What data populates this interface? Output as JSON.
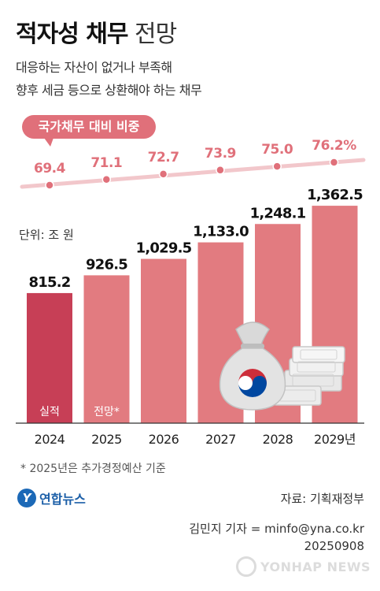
{
  "header": {
    "title_bold": "적자성 채무",
    "title_light": "전망",
    "subtitle_line1": "대응하는 자산이 없거나 부족해",
    "subtitle_line2": "향후 세금 등으로 상환해야 하는 채무"
  },
  "ratio_label": "국가채무 대비 비중",
  "unit_label": "단위: 조 원",
  "footnote": "* 2025년은 추가경정예산 기준",
  "logo_text": "연합뉴스",
  "logo_mark": "Y",
  "source": "자료: 기획재정부",
  "credit": "김민지 기자 = minfo@yna.co.kr",
  "date": "20250908",
  "watermark": "YONHAP NEWS",
  "colors": {
    "actual_bar": "#c73f56",
    "forecast_bar": "#e27b80",
    "ratio_line": "#f2c7cb",
    "ratio_dot": "#e0707a",
    "ratio_text": "#e0707a"
  },
  "chart_data": [
    {
      "type": "bar",
      "categories": [
        "2024",
        "2025",
        "2026",
        "2027",
        "2028",
        "2029년"
      ],
      "values": [
        815.2,
        926.5,
        1029.5,
        1133.0,
        1248.1,
        1362.5
      ],
      "value_labels": [
        "815.2",
        "926.5",
        "1,029.5",
        "1,133.0",
        "1,248.1",
        "1,362.5"
      ],
      "bar_annotations": [
        "실적",
        "전망*",
        "",
        "",
        "",
        ""
      ],
      "ylabel": "단위: 조 원",
      "ylim": [
        0,
        1362.5
      ],
      "grid": false
    },
    {
      "type": "line",
      "title": "국가채무 대비 비중",
      "categories": [
        "2024",
        "2025",
        "2026",
        "2027",
        "2028",
        "2029년"
      ],
      "values": [
        69.4,
        71.1,
        72.7,
        73.9,
        75.0,
        76.2
      ],
      "value_labels": [
        "69.4",
        "71.1",
        "72.7",
        "73.9",
        "75.0",
        "76.2%"
      ],
      "ylim": [
        69.4,
        76.2
      ],
      "grid": false
    }
  ]
}
